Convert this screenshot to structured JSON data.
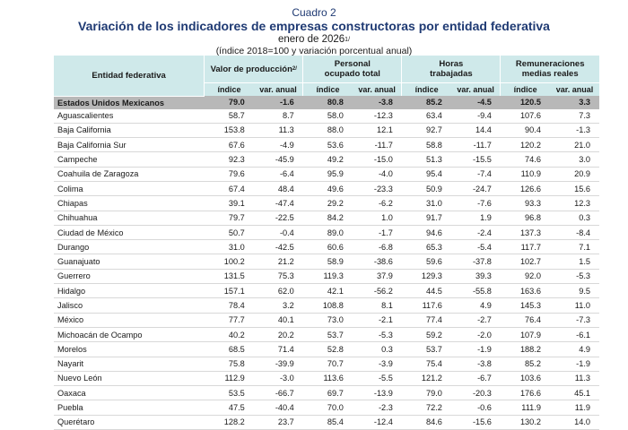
{
  "header": {
    "cuadro": "Cuadro 2",
    "title": "Variación de los indicadores de empresas constructoras por entidad federativa",
    "subtitle": "enero de 2026",
    "subtitle_note": "1/",
    "subsubtitle": "(índice 2018=100 y variación porcentual anual)"
  },
  "columns": {
    "entity": "Entidad federativa",
    "groups": [
      {
        "label": "Valor de producción",
        "note": "2/"
      },
      {
        "label": "Personal ocupado total",
        "note": ""
      },
      {
        "label": "Horas trabajadas",
        "note": ""
      },
      {
        "label": "Remuneraciones medias reales",
        "note": ""
      }
    ],
    "sub_index": "índice",
    "sub_var": "var. anual"
  },
  "national": {
    "name": "Estados Unidos Mexicanos",
    "values": [
      "79.0",
      "-1.6",
      "80.8",
      "-3.8",
      "85.2",
      "-4.5",
      "120.5",
      "3.3"
    ]
  },
  "rows": [
    {
      "name": "Aguascalientes",
      "values": [
        "58.7",
        "8.7",
        "58.0",
        "-12.3",
        "63.4",
        "-9.4",
        "107.6",
        "7.3"
      ]
    },
    {
      "name": "Baja California",
      "values": [
        "153.8",
        "11.3",
        "88.0",
        "12.1",
        "92.7",
        "14.4",
        "90.4",
        "-1.3"
      ]
    },
    {
      "name": "Baja California Sur",
      "values": [
        "67.6",
        "-4.9",
        "53.6",
        "-11.7",
        "58.8",
        "-11.7",
        "120.2",
        "21.0"
      ]
    },
    {
      "name": "Campeche",
      "values": [
        "92.3",
        "-45.9",
        "49.2",
        "-15.0",
        "51.3",
        "-15.5",
        "74.6",
        "3.0"
      ]
    },
    {
      "name": "Coahuila de Zaragoza",
      "values": [
        "79.6",
        "-6.4",
        "95.9",
        "-4.0",
        "95.4",
        "-7.4",
        "110.9",
        "20.9"
      ]
    },
    {
      "name": "Colima",
      "values": [
        "67.4",
        "48.4",
        "49.6",
        "-23.3",
        "50.9",
        "-24.7",
        "126.6",
        "15.6"
      ]
    },
    {
      "name": "Chiapas",
      "values": [
        "39.1",
        "-47.4",
        "29.2",
        "-6.2",
        "31.0",
        "-7.6",
        "93.3",
        "12.3"
      ]
    },
    {
      "name": "Chihuahua",
      "values": [
        "79.7",
        "-22.5",
        "84.2",
        "1.0",
        "91.7",
        "1.9",
        "96.8",
        "0.3"
      ]
    },
    {
      "name": "Ciudad de México",
      "values": [
        "50.7",
        "-0.4",
        "89.0",
        "-1.7",
        "94.6",
        "-2.4",
        "137.3",
        "-8.4"
      ]
    },
    {
      "name": "Durango",
      "values": [
        "31.0",
        "-42.5",
        "60.6",
        "-6.8",
        "65.3",
        "-5.4",
        "117.7",
        "7.1"
      ]
    },
    {
      "name": "Guanajuato",
      "values": [
        "100.2",
        "21.2",
        "58.9",
        "-38.6",
        "59.6",
        "-37.8",
        "102.7",
        "1.5"
      ]
    },
    {
      "name": "Guerrero",
      "values": [
        "131.5",
        "75.3",
        "119.3",
        "37.9",
        "129.3",
        "39.3",
        "92.0",
        "-5.3"
      ]
    },
    {
      "name": "Hidalgo",
      "values": [
        "157.1",
        "62.0",
        "42.1",
        "-56.2",
        "44.5",
        "-55.8",
        "163.6",
        "9.5"
      ]
    },
    {
      "name": "Jalisco",
      "values": [
        "78.4",
        "3.2",
        "108.8",
        "8.1",
        "117.6",
        "4.9",
        "145.3",
        "11.0"
      ]
    },
    {
      "name": "México",
      "values": [
        "77.7",
        "40.1",
        "73.0",
        "-2.1",
        "77.4",
        "-2.7",
        "76.4",
        "-7.3"
      ]
    },
    {
      "name": "Michoacán de Ocampo",
      "values": [
        "40.2",
        "20.2",
        "53.7",
        "-5.3",
        "59.2",
        "-2.0",
        "107.9",
        "-6.1"
      ]
    },
    {
      "name": "Morelos",
      "values": [
        "68.5",
        "71.4",
        "52.8",
        "0.3",
        "53.7",
        "-1.9",
        "188.2",
        "4.9"
      ]
    },
    {
      "name": "Nayarit",
      "values": [
        "75.8",
        "-39.9",
        "70.7",
        "-3.9",
        "75.4",
        "-3.8",
        "85.2",
        "-1.9"
      ]
    },
    {
      "name": "Nuevo León",
      "values": [
        "112.9",
        "-3.0",
        "113.6",
        "-5.5",
        "121.2",
        "-6.7",
        "103.6",
        "11.3"
      ]
    },
    {
      "name": "Oaxaca",
      "values": [
        "53.5",
        "-66.7",
        "69.7",
        "-13.9",
        "79.0",
        "-20.3",
        "176.6",
        "45.1"
      ]
    },
    {
      "name": "Puebla",
      "values": [
        "47.5",
        "-40.4",
        "70.0",
        "-2.3",
        "72.2",
        "-0.6",
        "111.9",
        "11.9"
      ]
    },
    {
      "name": "Querétaro",
      "values": [
        "128.2",
        "23.7",
        "85.4",
        "-12.4",
        "84.6",
        "-15.6",
        "130.2",
        "14.0"
      ]
    }
  ]
}
